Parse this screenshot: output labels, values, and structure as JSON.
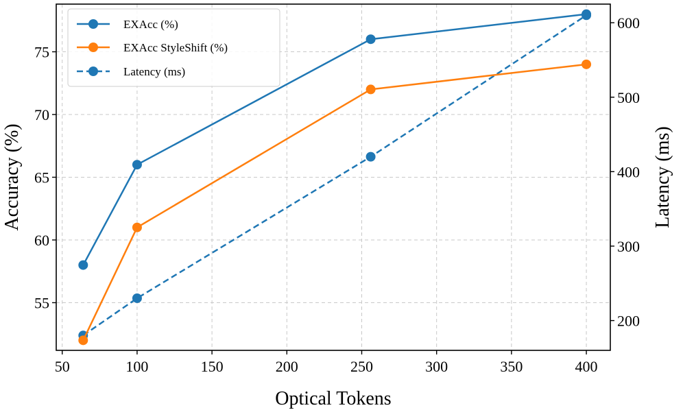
{
  "chart_data": {
    "type": "line",
    "xlabel": "Optical Tokens",
    "ylabel_left": "Accuracy (%)",
    "ylabel_right": "Latency (ms)",
    "xlim": [
      46,
      416
    ],
    "ylim_left": [
      51.2,
      78.8
    ],
    "ylim_right": [
      160,
      625
    ],
    "xticks": [
      50,
      100,
      150,
      200,
      250,
      300,
      350,
      400
    ],
    "yticks_left": [
      55,
      60,
      65,
      70,
      75
    ],
    "yticks_right": [
      200,
      300,
      400,
      500,
      600
    ],
    "grid": true,
    "legend_position": "top-left",
    "x": [
      64,
      100,
      256,
      400
    ],
    "series": [
      {
        "name": "EXAcc (%)",
        "axis": "left",
        "values": [
          58,
          66,
          76,
          78
        ],
        "color": "#1f77b4",
        "linestyle": "solid"
      },
      {
        "name": "EXAcc StyleShift (%)",
        "axis": "left",
        "values": [
          52,
          61,
          72,
          74
        ],
        "color": "#ff7f0e",
        "linestyle": "solid"
      },
      {
        "name": "Latency (ms)",
        "axis": "right",
        "values": [
          180,
          230,
          420,
          610
        ],
        "color": "#1f77b4",
        "linestyle": "dashed"
      }
    ]
  }
}
